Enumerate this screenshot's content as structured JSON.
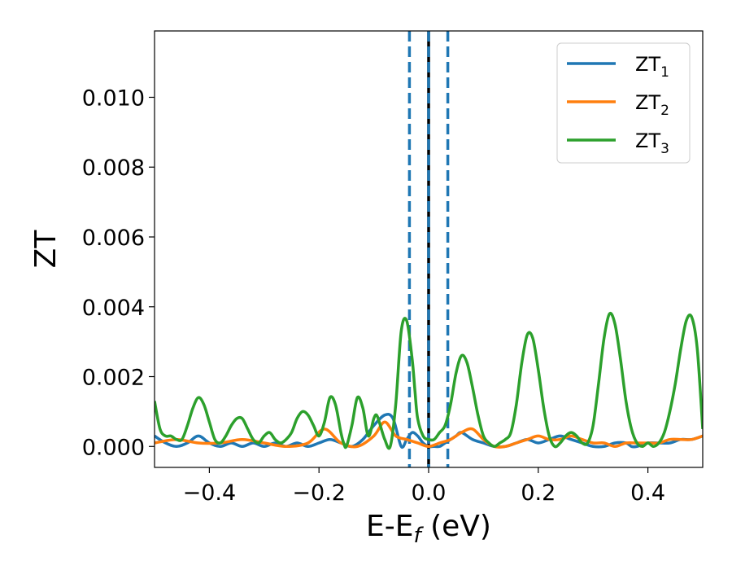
{
  "chart_data": {
    "type": "line",
    "title": "",
    "xlabel_main": "E-E",
    "xlabel_sub": "f",
    "xlabel_unit": " (eV)",
    "ylabel": "ZT",
    "xlim": [
      -0.5,
      0.5
    ],
    "ylim": [
      -0.0006,
      0.0119
    ],
    "xticks": [
      -0.4,
      -0.2,
      0.0,
      0.2,
      0.4
    ],
    "xtick_labels": [
      "−0.4",
      "−0.2",
      "0.0",
      "0.2",
      "0.4"
    ],
    "yticks": [
      0.0,
      0.002,
      0.004,
      0.006,
      0.008,
      0.01
    ],
    "ytick_labels": [
      "0.000",
      "0.002",
      "0.004",
      "0.006",
      "0.008",
      "0.010"
    ],
    "grid": false,
    "legend_position": "top-right",
    "vlines": [
      {
        "x": -0.035,
        "style": "dashed",
        "color": "#1f77b4"
      },
      {
        "x": 0.0,
        "style": "solid",
        "color": "#000000"
      },
      {
        "x": 0.0,
        "style": "dashed",
        "color": "#1f77b4"
      },
      {
        "x": 0.035,
        "style": "dashed",
        "color": "#1f77b4"
      }
    ],
    "series": [
      {
        "name": "ZT",
        "sub": "1",
        "color": "#1f77b4",
        "x": [
          -0.5,
          -0.48,
          -0.46,
          -0.44,
          -0.42,
          -0.4,
          -0.38,
          -0.36,
          -0.34,
          -0.32,
          -0.3,
          -0.28,
          -0.26,
          -0.24,
          -0.22,
          -0.2,
          -0.18,
          -0.16,
          -0.14,
          -0.12,
          -0.1,
          -0.08,
          -0.065,
          -0.05,
          -0.04,
          -0.03,
          -0.02,
          -0.01,
          0.0,
          0.01,
          0.02,
          0.03,
          0.04,
          0.05,
          0.06,
          0.08,
          0.1,
          0.12,
          0.14,
          0.16,
          0.18,
          0.2,
          0.22,
          0.24,
          0.26,
          0.28,
          0.3,
          0.32,
          0.34,
          0.36,
          0.37,
          0.38,
          0.4,
          0.42,
          0.44,
          0.46,
          0.48,
          0.5
        ],
        "y": [
          0.0003,
          0.0001,
          0.0,
          0.0001,
          0.0003,
          0.0001,
          0.0,
          0.0001,
          0.0,
          0.0001,
          0.0,
          0.0001,
          0.0,
          0.0001,
          0.0,
          0.0001,
          0.0002,
          0.0001,
          0.0,
          0.0002,
          0.0006,
          0.0009,
          0.0008,
          0.0,
          0.0002,
          0.0004,
          0.0003,
          0.0001,
          0.0,
          0.0,
          0.0,
          0.0001,
          0.0002,
          0.0003,
          0.0004,
          0.0002,
          0.0001,
          0.0,
          0.0,
          0.0001,
          0.0002,
          0.0001,
          0.0002,
          0.0003,
          0.0002,
          0.0001,
          0.0,
          0.0,
          0.0001,
          0.0001,
          0.0,
          0.0,
          0.0001,
          0.0001,
          0.0001,
          0.0002,
          0.0002,
          0.0003
        ]
      },
      {
        "name": "ZT",
        "sub": "2",
        "color": "#ff7f0e",
        "x": [
          -0.5,
          -0.46,
          -0.42,
          -0.38,
          -0.34,
          -0.3,
          -0.26,
          -0.22,
          -0.19,
          -0.16,
          -0.13,
          -0.1,
          -0.08,
          -0.06,
          -0.04,
          -0.02,
          0.0,
          0.02,
          0.04,
          0.06,
          0.08,
          0.1,
          0.12,
          0.14,
          0.16,
          0.18,
          0.2,
          0.22,
          0.24,
          0.26,
          0.28,
          0.3,
          0.32,
          0.34,
          0.36,
          0.38,
          0.4,
          0.42,
          0.44,
          0.46,
          0.48,
          0.5
        ],
        "y": [
          0.0001,
          0.0002,
          0.0001,
          0.0001,
          0.0002,
          0.0001,
          0.0,
          0.0001,
          0.0005,
          0.0001,
          0.0,
          0.0003,
          0.0007,
          0.0003,
          0.0002,
          0.0001,
          0.0,
          0.0001,
          0.0002,
          0.0004,
          0.0005,
          0.0002,
          0.0,
          0.0,
          0.0001,
          0.0002,
          0.0003,
          0.0002,
          0.0002,
          0.0003,
          0.0002,
          0.0001,
          0.0001,
          0.0,
          0.0001,
          0.0001,
          0.0001,
          0.0001,
          0.0002,
          0.0002,
          0.0002,
          0.0003
        ]
      },
      {
        "name": "ZT",
        "sub": "3",
        "color": "#2ca02c",
        "x": [
          -0.5,
          -0.49,
          -0.48,
          -0.47,
          -0.46,
          -0.45,
          -0.44,
          -0.43,
          -0.42,
          -0.41,
          -0.4,
          -0.39,
          -0.38,
          -0.37,
          -0.36,
          -0.35,
          -0.34,
          -0.33,
          -0.32,
          -0.31,
          -0.3,
          -0.29,
          -0.28,
          -0.27,
          -0.26,
          -0.25,
          -0.24,
          -0.23,
          -0.22,
          -0.21,
          -0.2,
          -0.19,
          -0.18,
          -0.17,
          -0.16,
          -0.155,
          -0.15,
          -0.14,
          -0.13,
          -0.12,
          -0.11,
          -0.1,
          -0.095,
          -0.09,
          -0.08,
          -0.07,
          -0.06,
          -0.05,
          -0.04,
          -0.03,
          -0.025,
          -0.02,
          -0.01,
          0.0,
          0.01,
          0.02,
          0.03,
          0.04,
          0.05,
          0.06,
          0.07,
          0.08,
          0.09,
          0.1,
          0.11,
          0.12,
          0.13,
          0.14,
          0.15,
          0.16,
          0.17,
          0.18,
          0.19,
          0.2,
          0.21,
          0.22,
          0.23,
          0.24,
          0.25,
          0.26,
          0.27,
          0.28,
          0.29,
          0.3,
          0.31,
          0.32,
          0.33,
          0.34,
          0.35,
          0.36,
          0.37,
          0.38,
          0.39,
          0.4,
          0.41,
          0.42,
          0.43,
          0.44,
          0.45,
          0.46,
          0.47,
          0.48,
          0.49,
          0.5
        ],
        "y": [
          0.0013,
          0.0005,
          0.0003,
          0.0003,
          0.0002,
          0.0002,
          0.0006,
          0.0011,
          0.0014,
          0.0012,
          0.0007,
          0.0002,
          0.0001,
          0.0003,
          0.0006,
          0.0008,
          0.0008,
          0.0005,
          0.0002,
          0.0001,
          0.0003,
          0.0004,
          0.0002,
          0.0001,
          0.0002,
          0.0004,
          0.0008,
          0.001,
          0.0009,
          0.0006,
          0.0003,
          0.0007,
          0.0014,
          0.0012,
          0.0004,
          0.0001,
          0.0,
          0.0006,
          0.0014,
          0.0011,
          0.0003,
          0.0008,
          0.0009,
          0.0007,
          0.0002,
          0.0,
          0.0012,
          0.0033,
          0.0036,
          0.0025,
          0.0016,
          0.0008,
          0.0003,
          0.0002,
          0.0002,
          0.0004,
          0.0006,
          0.0012,
          0.0021,
          0.0026,
          0.0024,
          0.0017,
          0.0009,
          0.0003,
          0.0001,
          0.0,
          0.0001,
          0.0002,
          0.0004,
          0.0012,
          0.0024,
          0.0032,
          0.0031,
          0.0022,
          0.0011,
          0.0003,
          0.0,
          0.0001,
          0.0003,
          0.0004,
          0.0003,
          0.0001,
          0.0001,
          0.0006,
          0.0018,
          0.0031,
          0.0038,
          0.0035,
          0.0025,
          0.0013,
          0.0005,
          0.0001,
          0.0,
          0.0001,
          0.0,
          0.0001,
          0.0004,
          0.001,
          0.0018,
          0.0028,
          0.0036,
          0.0037,
          0.0028,
          0.0005
        ]
      }
    ]
  }
}
